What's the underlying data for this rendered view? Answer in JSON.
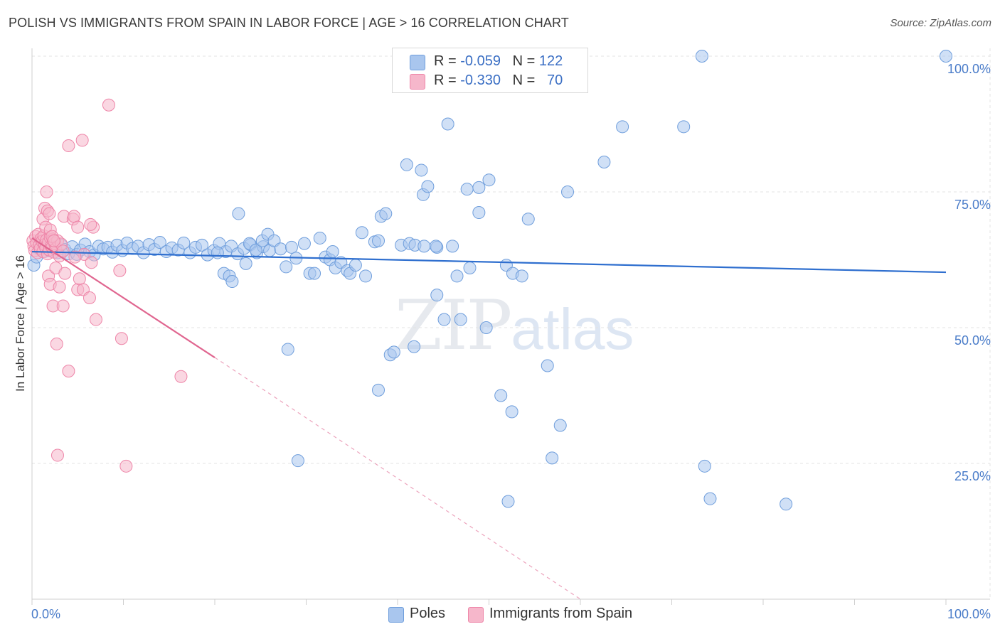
{
  "title": "POLISH VS IMMIGRANTS FROM SPAIN IN LABOR FORCE | AGE > 16 CORRELATION CHART",
  "source": "Source: ZipAtlas.com",
  "watermark": {
    "zip": "ZIP",
    "atlas": "atlas"
  },
  "legend": {
    "rows": [
      {
        "r_label": "R =",
        "r_value": "-0.059",
        "n_label": "N =",
        "n_value": "122",
        "color": "#a9c6ee"
      },
      {
        "r_label": "R =",
        "r_value": "-0.330",
        "n_label": "N =",
        "n_value": "70",
        "color": "#f6b7cb"
      }
    ]
  },
  "bottom_legend": [
    {
      "label": "Poles",
      "color": "#a9c6ee"
    },
    {
      "label": "Immigrants from Spain",
      "color": "#f6b7cb"
    }
  ],
  "chart_data": {
    "type": "scatter",
    "xlabel": "",
    "ylabel": "In Labor Force | Age > 16",
    "xlim": [
      0,
      100
    ],
    "ylim": [
      0,
      100
    ],
    "x_tick_labels": [
      "0.0%",
      "100.0%"
    ],
    "y_tick_labels": [
      "100.0%",
      "75.0%",
      "50.0%",
      "25.0%"
    ],
    "y_ticks": [
      100,
      75,
      50,
      25
    ],
    "grid": true,
    "legend_position": "top-center",
    "series": [
      {
        "name": "Poles",
        "color": "#6f9edc",
        "fill": "#a9c6ee",
        "trend": {
          "x": [
            0,
            100
          ],
          "y": [
            64.0,
            60.2
          ],
          "style": "solid",
          "color": "#2f6fcf"
        },
        "points": [
          [
            0.2,
            61.5
          ],
          [
            0.5,
            63.0
          ],
          [
            0.8,
            64.5
          ],
          [
            1.0,
            65.5
          ],
          [
            1.3,
            64.0
          ],
          [
            1.6,
            65.0
          ],
          [
            1.9,
            64.2
          ],
          [
            2.2,
            65.8
          ],
          [
            2.5,
            64.6
          ],
          [
            2.8,
            63.8
          ],
          [
            3.2,
            65.2
          ],
          [
            3.6,
            64.4
          ],
          [
            4.0,
            63.6
          ],
          [
            4.4,
            64.9
          ],
          [
            4.9,
            63.5
          ],
          [
            5.3,
            64.3
          ],
          [
            5.8,
            65.4
          ],
          [
            6.3,
            64.0
          ],
          [
            6.8,
            63.4
          ],
          [
            7.3,
            65.0
          ],
          [
            7.8,
            64.5
          ],
          [
            8.3,
            64.8
          ],
          [
            8.8,
            63.9
          ],
          [
            9.3,
            65.2
          ],
          [
            9.9,
            64.2
          ],
          [
            10.4,
            65.6
          ],
          [
            11.0,
            64.6
          ],
          [
            11.6,
            65.0
          ],
          [
            12.2,
            63.8
          ],
          [
            12.8,
            65.3
          ],
          [
            13.4,
            64.4
          ],
          [
            14.0,
            65.7
          ],
          [
            14.7,
            64.0
          ],
          [
            15.3,
            64.7
          ],
          [
            16.0,
            64.3
          ],
          [
            16.6,
            65.6
          ],
          [
            17.3,
            63.8
          ],
          [
            17.9,
            64.8
          ],
          [
            18.6,
            65.2
          ],
          [
            19.2,
            63.4
          ],
          [
            19.9,
            64.2
          ],
          [
            20.5,
            65.5
          ],
          [
            21.2,
            64.0
          ],
          [
            21.8,
            65.0
          ],
          [
            22.5,
            63.6
          ],
          [
            23.2,
            64.6
          ],
          [
            23.9,
            65.3
          ],
          [
            24.6,
            63.8
          ],
          [
            25.3,
            64.9
          ],
          [
            26.0,
            64.2
          ],
          [
            20.3,
            63.8
          ],
          [
            21.0,
            60.0
          ],
          [
            21.6,
            59.5
          ],
          [
            21.9,
            58.5
          ],
          [
            22.6,
            71.0
          ],
          [
            23.4,
            61.8
          ],
          [
            23.8,
            65.5
          ],
          [
            24.5,
            64.3
          ],
          [
            25.2,
            66.0
          ],
          [
            25.8,
            67.2
          ],
          [
            26.5,
            66.0
          ],
          [
            27.2,
            64.5
          ],
          [
            27.8,
            61.2
          ],
          [
            28.4,
            64.8
          ],
          [
            28.9,
            62.8
          ],
          [
            29.8,
            65.5
          ],
          [
            30.4,
            60.0
          ],
          [
            30.9,
            60.0
          ],
          [
            31.5,
            66.5
          ],
          [
            32.1,
            63.0
          ],
          [
            32.6,
            62.5
          ],
          [
            32.9,
            64.0
          ],
          [
            33.2,
            61.0
          ],
          [
            33.8,
            62.0
          ],
          [
            34.5,
            60.5
          ],
          [
            34.8,
            60.0
          ],
          [
            35.4,
            61.5
          ],
          [
            36.1,
            67.5
          ],
          [
            36.5,
            59.5
          ],
          [
            37.5,
            65.8
          ],
          [
            37.9,
            66.0
          ],
          [
            38.2,
            70.5
          ],
          [
            38.7,
            71.0
          ],
          [
            40.4,
            65.2
          ],
          [
            41.3,
            65.5
          ],
          [
            41.9,
            65.2
          ],
          [
            41.0,
            80.0
          ],
          [
            42.6,
            79.0
          ],
          [
            42.8,
            74.5
          ],
          [
            43.3,
            76.0
          ],
          [
            44.3,
            64.8
          ],
          [
            44.3,
            56.0
          ],
          [
            45.1,
            51.5
          ],
          [
            45.5,
            87.5
          ],
          [
            46.5,
            59.5
          ],
          [
            46.9,
            51.5
          ],
          [
            47.6,
            75.5
          ],
          [
            47.9,
            61.0
          ],
          [
            48.9,
            75.8
          ],
          [
            48.9,
            71.2
          ],
          [
            49.7,
            50.0
          ],
          [
            50.0,
            77.2
          ],
          [
            51.9,
            61.5
          ],
          [
            51.3,
            37.5
          ],
          [
            52.5,
            34.5
          ],
          [
            52.6,
            60.0
          ],
          [
            53.6,
            59.5
          ],
          [
            54.3,
            70.0
          ],
          [
            56.9,
            26.0
          ],
          [
            57.8,
            32.0
          ],
          [
            44.2,
            65.0
          ],
          [
            46.0,
            65.0
          ],
          [
            52.9,
            97.0
          ],
          [
            53.3,
            100.0
          ],
          [
            56.4,
            43.0
          ],
          [
            58.6,
            75.0
          ],
          [
            62.6,
            80.5
          ],
          [
            64.6,
            87.0
          ],
          [
            71.3,
            87.0
          ],
          [
            73.6,
            24.5
          ],
          [
            74.2,
            18.5
          ],
          [
            82.5,
            17.5
          ],
          [
            73.3,
            100.0
          ],
          [
            100.0,
            100.0
          ],
          [
            39.2,
            45.0
          ],
          [
            39.6,
            45.5
          ],
          [
            37.9,
            38.5
          ],
          [
            29.1,
            25.5
          ],
          [
            41.8,
            46.5
          ],
          [
            28.0,
            46.0
          ],
          [
            52.1,
            18.0
          ],
          [
            42.9,
            65.0
          ]
        ]
      },
      {
        "name": "Immigrants from Spain",
        "color": "#ee85a8",
        "fill": "#f6b7cb",
        "trend": {
          "x": [
            0,
            20
          ],
          "y": [
            66.5,
            44.5
          ],
          "dashed_to": [
            60,
            0
          ],
          "style": "solid-then-dashed",
          "color": "#e06690"
        },
        "points": [
          [
            0.1,
            66.0
          ],
          [
            0.2,
            65.0
          ],
          [
            0.3,
            64.2
          ],
          [
            0.4,
            66.8
          ],
          [
            0.5,
            65.6
          ],
          [
            0.6,
            63.8
          ],
          [
            0.7,
            67.2
          ],
          [
            0.8,
            65.2
          ],
          [
            0.9,
            64.6
          ],
          [
            1.0,
            66.4
          ],
          [
            1.1,
            65.9
          ],
          [
            1.2,
            64.0
          ],
          [
            1.3,
            66.9
          ],
          [
            1.4,
            65.3
          ],
          [
            1.5,
            64.7
          ],
          [
            1.6,
            66.2
          ],
          [
            1.7,
            63.6
          ],
          [
            1.8,
            65.7
          ],
          [
            1.9,
            64.3
          ],
          [
            2.0,
            66.6
          ],
          [
            2.1,
            65.0
          ],
          [
            2.2,
            64.8
          ],
          [
            2.3,
            66.3
          ],
          [
            2.4,
            63.9
          ],
          [
            2.5,
            65.5
          ],
          [
            2.6,
            64.5
          ],
          [
            2.8,
            66.0
          ],
          [
            3.0,
            63.2
          ],
          [
            3.2,
            65.4
          ],
          [
            3.4,
            64.1
          ],
          [
            1.2,
            70.0
          ],
          [
            1.4,
            72.0
          ],
          [
            1.5,
            68.5
          ],
          [
            1.6,
            75.0
          ],
          [
            1.7,
            71.5
          ],
          [
            1.9,
            71.0
          ],
          [
            2.0,
            68.0
          ],
          [
            2.2,
            66.8
          ],
          [
            2.4,
            66.0
          ],
          [
            3.5,
            70.5
          ],
          [
            4.0,
            83.5
          ],
          [
            4.5,
            70.0
          ],
          [
            4.6,
            70.5
          ],
          [
            5.0,
            68.5
          ],
          [
            5.5,
            84.5
          ],
          [
            6.7,
            68.5
          ],
          [
            8.4,
            91.0
          ],
          [
            6.4,
            69.0
          ],
          [
            5.7,
            63.5
          ],
          [
            4.7,
            63.0
          ],
          [
            1.8,
            59.5
          ],
          [
            2.0,
            58.0
          ],
          [
            2.3,
            54.0
          ],
          [
            2.6,
            61.0
          ],
          [
            3.0,
            57.5
          ],
          [
            3.4,
            54.0
          ],
          [
            3.6,
            60.0
          ],
          [
            5.0,
            57.0
          ],
          [
            5.2,
            59.0
          ],
          [
            5.6,
            57.0
          ],
          [
            6.3,
            55.5
          ],
          [
            7.0,
            51.5
          ],
          [
            9.6,
            60.5
          ],
          [
            9.8,
            48.0
          ],
          [
            2.7,
            47.0
          ],
          [
            4.0,
            42.0
          ],
          [
            16.3,
            41.0
          ],
          [
            10.3,
            24.5
          ],
          [
            2.8,
            26.5
          ],
          [
            6.5,
            62.0
          ]
        ]
      }
    ]
  }
}
